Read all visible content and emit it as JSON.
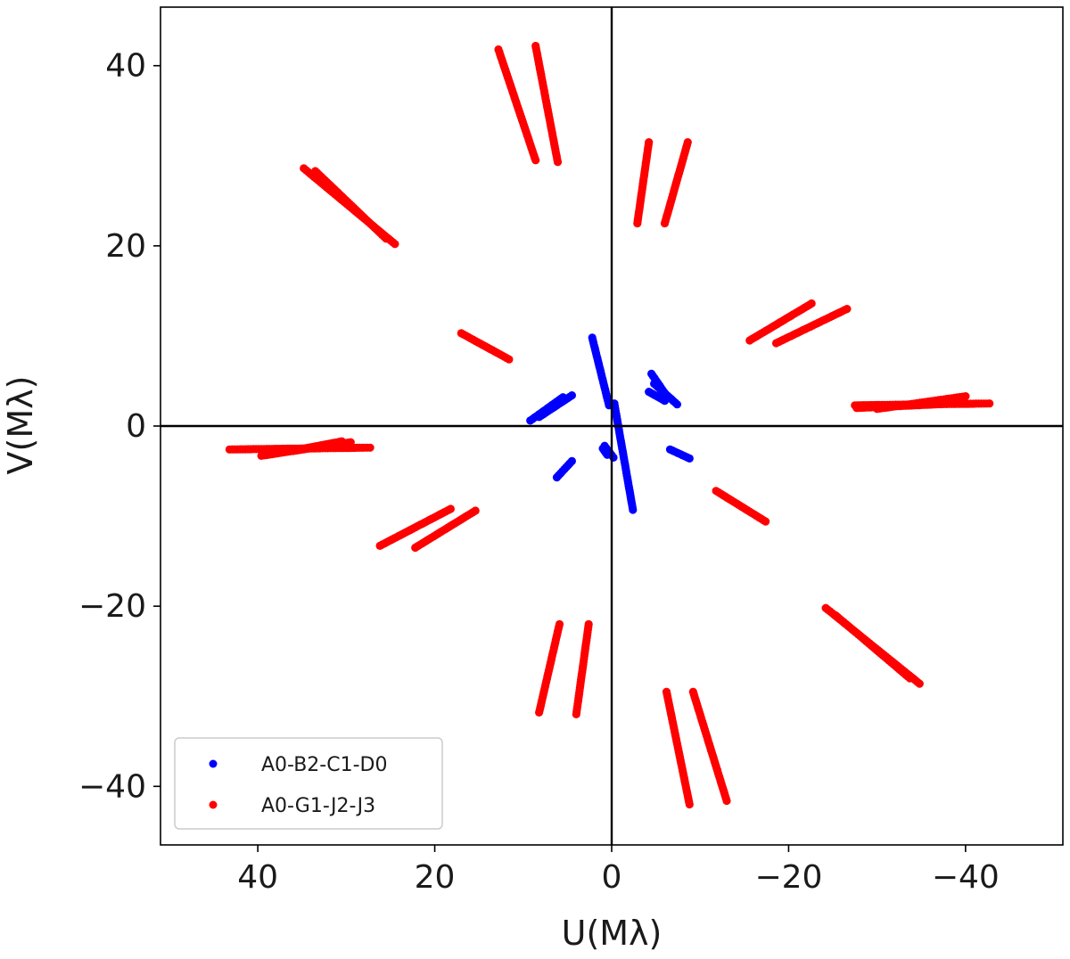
{
  "chart_data": {
    "type": "scatter",
    "title": "",
    "xlabel": "U(Mλ)",
    "ylabel": "V(Mλ)",
    "xlim": [
      51,
      -51
    ],
    "ylim": [
      -46.5,
      46.5
    ],
    "xticks": [
      40,
      20,
      0,
      -20,
      -40
    ],
    "yticks": [
      -40,
      -20,
      0,
      20,
      40
    ],
    "xtick_labels": [
      "40",
      "20",
      "0",
      "−20",
      "−40"
    ],
    "ytick_labels": [
      "−40",
      "−20",
      "0",
      "20",
      "40"
    ],
    "zero_lines": true,
    "grid": false,
    "legend": {
      "position": "lower-left"
    },
    "series": [
      {
        "name": "A0-B2-C1-D0",
        "color": "#0000ff",
        "tracks": [
          [
            [
              2.2,
              9.8
            ],
            [
              0.3,
              2.3
            ]
          ],
          [
            [
              5.5,
              3.2
            ],
            [
              9.2,
              0.6
            ]
          ],
          [
            [
              4.5,
              3.4
            ],
            [
              8.2,
              1.0
            ]
          ],
          [
            [
              -0.3,
              2.5
            ],
            [
              -2.4,
              -9.3
            ]
          ],
          [
            [
              -6.6,
              -2.6
            ],
            [
              -8.8,
              -3.6
            ]
          ],
          [
            [
              -7.4,
              2.4
            ],
            [
              -4.8,
              4.7
            ]
          ],
          [
            [
              -6.0,
              2.8
            ],
            [
              -4.2,
              3.8
            ]
          ],
          [
            [
              -4.5,
              5.8
            ],
            [
              -6.1,
              3.5
            ]
          ],
          [
            [
              4.5,
              -3.9
            ],
            [
              6.2,
              -5.7
            ]
          ],
          [
            [
              0.8,
              -2.2
            ],
            [
              -0.2,
              -3.5
            ]
          ],
          [
            [
              1.0,
              -2.5
            ],
            [
              0.5,
              -3.2
            ]
          ]
        ]
      },
      {
        "name": "A0-G1-J2-J3",
        "color": "#ff0000",
        "tracks": [
          [
            [
              12.8,
              41.8
            ],
            [
              8.6,
              29.5
            ]
          ],
          [
            [
              8.6,
              42.2
            ],
            [
              6.1,
              29.3
            ]
          ],
          [
            [
              -4.2,
              31.5
            ],
            [
              -2.9,
              22.5
            ]
          ],
          [
            [
              -8.6,
              31.5
            ],
            [
              -6.0,
              22.5
            ]
          ],
          [
            [
              34.8,
              28.6
            ],
            [
              24.5,
              20.2
            ]
          ],
          [
            [
              33.5,
              28.3
            ],
            [
              25.5,
              20.8
            ]
          ],
          [
            [
              17.0,
              10.3
            ],
            [
              11.6,
              7.4
            ]
          ],
          [
            [
              -15.6,
              9.5
            ],
            [
              -22.6,
              13.6
            ]
          ],
          [
            [
              -18.6,
              9.2
            ],
            [
              -26.6,
              13.0
            ]
          ],
          [
            [
              -27.5,
              2.3
            ],
            [
              -42.7,
              2.5
            ]
          ],
          [
            [
              -30.0,
              1.9
            ],
            [
              -40.0,
              3.3
            ]
          ],
          [
            [
              -27.7,
              2.0
            ],
            [
              -36.6,
              2.4
            ]
          ],
          [
            [
              43.2,
              -2.6
            ],
            [
              27.3,
              -2.4
            ]
          ],
          [
            [
              39.6,
              -3.3
            ],
            [
              29.5,
              -1.8
            ]
          ],
          [
            [
              36.4,
              -2.8
            ],
            [
              30.5,
              -1.7
            ]
          ],
          [
            [
              -11.8,
              -7.2
            ],
            [
              -17.4,
              -10.6
            ]
          ],
          [
            [
              26.2,
              -13.3
            ],
            [
              18.2,
              -9.2
            ]
          ],
          [
            [
              22.2,
              -13.5
            ],
            [
              15.4,
              -9.4
            ]
          ],
          [
            [
              5.9,
              -22.0
            ],
            [
              8.2,
              -31.8
            ]
          ],
          [
            [
              2.6,
              -22.0
            ],
            [
              4.0,
              -32.0
            ]
          ],
          [
            [
              -6.2,
              -29.5
            ],
            [
              -8.8,
              -42.0
            ]
          ],
          [
            [
              -9.2,
              -29.5
            ],
            [
              -13.0,
              -41.6
            ]
          ],
          [
            [
              -24.2,
              -20.2
            ],
            [
              -34.8,
              -28.6
            ]
          ],
          [
            [
              -25.3,
              -21.0
            ],
            [
              -33.7,
              -28.0
            ]
          ]
        ]
      }
    ]
  }
}
